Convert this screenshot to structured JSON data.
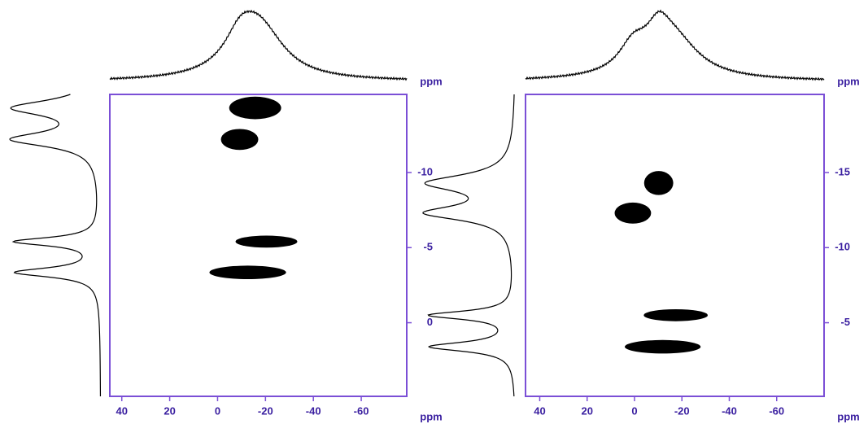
{
  "chart_data": [
    {
      "type": "nmr",
      "xlabel": "ppm",
      "ylabel": "ppm",
      "xlim": [
        45,
        -79
      ],
      "xticks": [
        40,
        20,
        0,
        -20,
        -40,
        -60
      ],
      "ylim": [
        4.9,
        -15.2
      ],
      "yticks": [
        -10,
        -5,
        0
      ],
      "color": "#000000",
      "axis_color": "#7b4fd6",
      "peaks": {
        "x": [
          -15.7,
          -9.2,
          -20.4,
          -12.6
        ],
        "y": [
          -14.3,
          -12.2,
          -5.4,
          -3.35
        ],
        "x_width": [
          21.7,
          15.6,
          25.8,
          32
        ],
        "y_width": [
          1.5,
          1.4,
          0.8,
          0.9
        ]
      }
    },
    {
      "type": "nmr",
      "xlabel": "ppm",
      "ylabel": "ppm",
      "xlim": [
        46,
        -80
      ],
      "xticks": [
        40,
        20,
        0,
        -20,
        -40,
        -60
      ],
      "ylim": [
        -0.1,
        -20.2
      ],
      "yticks": [
        -15,
        -10,
        -5
      ],
      "color": "#000000",
      "axis_color": "#7b4fd6",
      "peaks": {
        "x": [
          -10.2,
          0.7,
          -17.4,
          -11.9
        ],
        "y": [
          -14.3,
          -12.3,
          -5.5,
          -3.4
        ],
        "x_width": [
          12.3,
          15.4,
          27,
          32
        ],
        "y_width": [
          1.6,
          1.4,
          0.8,
          0.9
        ]
      }
    }
  ]
}
